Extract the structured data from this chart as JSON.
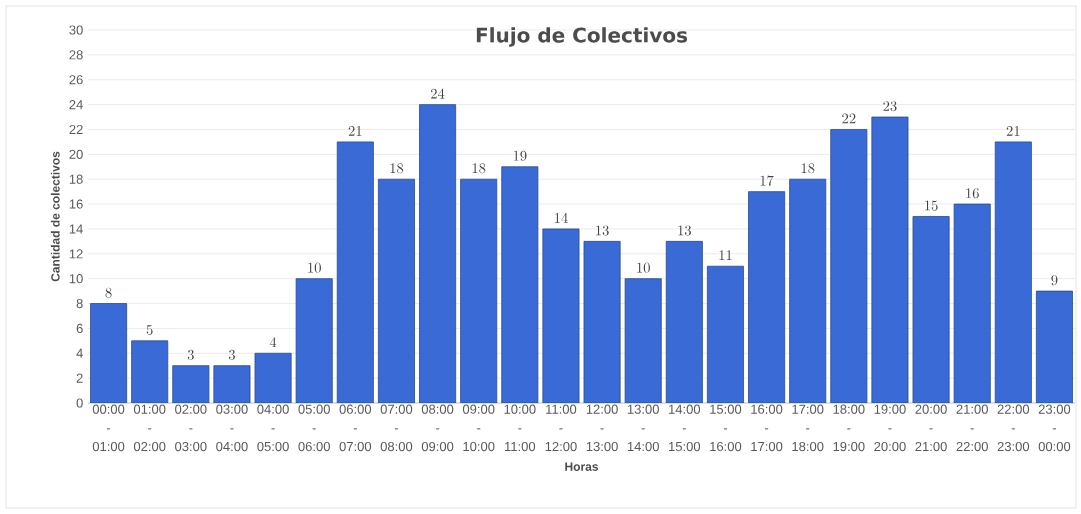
{
  "chart_data": {
    "type": "bar",
    "title": "Flujo de Colectivos",
    "xlabel": "Horas",
    "ylabel": "Cantidad de colectivos",
    "categories": [
      "00:00 - 01:00",
      "01:00 - 02:00",
      "02:00 - 03:00",
      "03:00 - 04:00",
      "04:00 - 05:00",
      "05:00 - 06:00",
      "06:00 - 07:00",
      "07:00 - 08:00",
      "08:00 - 09:00",
      "09:00 - 10:00",
      "10:00 - 11:00",
      "11:00 - 12:00",
      "12:00 - 13:00",
      "13:00 - 14:00",
      "14:00 - 15:00",
      "15:00 - 16:00",
      "16:00 - 17:00",
      "17:00 - 18:00",
      "18:00 - 19:00",
      "19:00 - 20:00",
      "20:00 - 21:00",
      "21:00 - 22:00",
      "22:00 - 23:00",
      "23:00 - 00:00"
    ],
    "values": [
      8,
      5,
      3,
      3,
      4,
      10,
      21,
      18,
      24,
      18,
      19,
      14,
      13,
      10,
      13,
      11,
      17,
      18,
      22,
      23,
      15,
      16,
      21,
      9
    ],
    "color": "#3a6ad6",
    "ylim": [
      0,
      30
    ],
    "yticks": [
      0,
      2,
      4,
      6,
      8,
      10,
      12,
      14,
      16,
      18,
      20,
      22,
      24,
      26,
      28,
      30
    ],
    "grid": "y",
    "data_labels": true
  }
}
